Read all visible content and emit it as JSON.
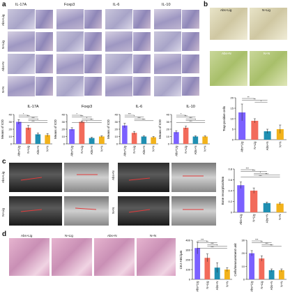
{
  "panels": {
    "a": {
      "label": "a",
      "markers": [
        "IL-17A",
        "Foxp3",
        "IL-6",
        "IL-10"
      ],
      "groups": [
        "Abs+Lig",
        "N+Lig",
        "Abs+N",
        "N+N"
      ],
      "charts": [
        {
          "title": "IL-17A",
          "ylabel": "Means of IOD"
        },
        {
          "title": "Foxp3",
          "ylabel": "Means of IOD"
        },
        {
          "title": "IL-6",
          "ylabel": "Means of IOD"
        },
        {
          "title": "IL-10",
          "ylabel": "Means of IOD"
        }
      ]
    },
    "b": {
      "label": "b",
      "images": [
        "Abs+Lig",
        "N+Lig",
        "Abs+N",
        "N+N"
      ],
      "chart": {
        "ylabel": "Trap-positive cells"
      }
    },
    "c": {
      "label": "c",
      "row_labels": [
        "Abs+Lig",
        "N+Lig",
        "Abs+N",
        "N+N"
      ],
      "chart": {
        "ylabel": "Bone resorption/mm"
      }
    },
    "d": {
      "label": "d",
      "images": [
        "Abs+Lig",
        "N+Lig",
        "Abs+N",
        "N+N"
      ],
      "charts": [
        {
          "ylabel": "CEJ-ABC/μm"
        },
        {
          "ylabel": "Cells/measurement unit"
        }
      ]
    }
  },
  "colors": {
    "Abs+Lig": "#7b61ff",
    "N+Lig": "#f26b5b",
    "Abs+N": "#1f8fb2",
    "N+N": "#f2b21b"
  },
  "chart_data": [
    {
      "type": "bar",
      "title": "IL-17A",
      "categories": [
        "Abs+Lig",
        "N+Lig",
        "Abs+N",
        "N+N"
      ],
      "values": [
        30,
        22,
        13,
        12
      ],
      "errors": [
        3,
        3,
        2,
        2
      ],
      "ylim": [
        0,
        40
      ],
      "yticks": [
        0,
        10,
        20,
        30,
        40
      ],
      "sig": [
        "*",
        "***",
        "***",
        "*",
        "***"
      ]
    },
    {
      "type": "bar",
      "title": "Foxp3",
      "categories": [
        "Abs+Lig",
        "N+Lig",
        "Abs+N",
        "N+N"
      ],
      "values": [
        20,
        30,
        8,
        10
      ],
      "errors": [
        2,
        1,
        1,
        1
      ],
      "ylim": [
        0,
        40
      ],
      "yticks": [
        0,
        10,
        20,
        30,
        40
      ],
      "sig": [
        "*",
        "***",
        "*",
        "***",
        "*"
      ]
    },
    {
      "type": "bar",
      "title": "IL-6",
      "categories": [
        "Abs+Lig",
        "N+Lig",
        "Abs+N",
        "N+N"
      ],
      "values": [
        25,
        15,
        10,
        9
      ],
      "errors": [
        3,
        2,
        1,
        1
      ],
      "ylim": [
        0,
        40
      ],
      "yticks": [
        0,
        10,
        20,
        30,
        40
      ],
      "sig": [
        "***",
        "*",
        "***",
        "***"
      ]
    },
    {
      "type": "bar",
      "title": "IL-10",
      "categories": [
        "Abs+Lig",
        "N+Lig",
        "Abs+N",
        "N+N"
      ],
      "values": [
        16,
        22,
        10,
        10
      ],
      "errors": [
        2,
        2,
        1,
        1
      ],
      "ylim": [
        0,
        40
      ],
      "yticks": [
        0,
        10,
        20,
        30,
        40
      ],
      "sig": [
        "*",
        "***",
        "***",
        "*",
        "***"
      ]
    },
    {
      "type": "bar",
      "categories": [
        "Abs+Lig",
        "N+Lig",
        "Abs+N",
        "N+N"
      ],
      "values": [
        13,
        9,
        4,
        5
      ],
      "errors": [
        4,
        1,
        1,
        2
      ],
      "ylim": [
        0,
        20
      ],
      "yticks": [
        0,
        5,
        10,
        15,
        20
      ],
      "sig": [
        "**",
        "**",
        "*"
      ]
    },
    {
      "type": "bar",
      "categories": [
        "Abs+Lig",
        "N+Lig",
        "Abs+N",
        "N+N"
      ],
      "values": [
        0.5,
        0.4,
        0.17,
        0.16
      ],
      "errors": [
        0.06,
        0.05,
        0.02,
        0.02
      ],
      "ylim": [
        0,
        0.8
      ],
      "yticks": [
        0.0,
        0.2,
        0.4,
        0.6,
        0.8
      ],
      "sig": [
        "***",
        "***",
        "*",
        "***",
        "***"
      ]
    },
    {
      "type": "bar",
      "categories": [
        "Abs+Lig",
        "N+Lig",
        "Abs+N",
        "N+N"
      ],
      "values": [
        320,
        220,
        120,
        100
      ],
      "errors": [
        60,
        40,
        50,
        20
      ],
      "ylim": [
        0,
        400
      ],
      "yticks": [
        0,
        100,
        200,
        300,
        400
      ],
      "sig": [
        "***",
        "**",
        "***",
        "*",
        "***"
      ]
    },
    {
      "type": "bar",
      "categories": [
        "Abs+Lig",
        "N+Lig",
        "Abs+N",
        "N+N"
      ],
      "values": [
        20,
        16,
        7,
        7
      ],
      "errors": [
        2,
        2,
        1,
        1
      ],
      "ylim": [
        0,
        30
      ],
      "yticks": [
        0,
        10,
        20,
        30
      ],
      "sig": [
        "***",
        "**",
        "***",
        "***"
      ]
    }
  ]
}
